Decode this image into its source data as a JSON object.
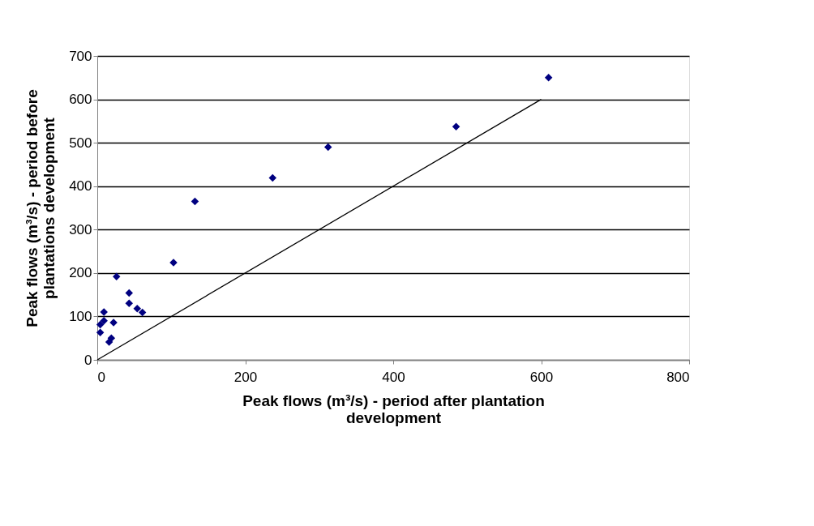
{
  "chart_data": {
    "type": "scatter",
    "xlabel": "Peak flows (m³/s) - period after plantation development",
    "ylabel": "Peak flows (m³/s) - period before plantations development",
    "xlim": [
      0,
      800
    ],
    "xticks": [
      0,
      200,
      400,
      600,
      800
    ],
    "ylim": [
      0,
      700
    ],
    "yticks": [
      0,
      100,
      200,
      300,
      400,
      500,
      600,
      700
    ],
    "grid": "y",
    "series": [
      {
        "color": "#000080",
        "marker": "diamond",
        "x": [
          610,
          485,
          312,
          237,
          132,
          103,
          26,
          43,
          43,
          54,
          61,
          9,
          4,
          22,
          4,
          19,
          16,
          9
        ],
        "values": [
          650,
          537,
          490,
          419,
          365,
          224,
          192,
          154,
          130,
          118,
          109,
          110,
          81,
          86,
          63,
          50,
          41,
          90
        ]
      },
      {
        "type": "line",
        "color": "#000000",
        "marker": "none",
        "line_style": "solid",
        "x": [
          0,
          600
        ],
        "values": [
          0,
          600
        ]
      }
    ]
  }
}
